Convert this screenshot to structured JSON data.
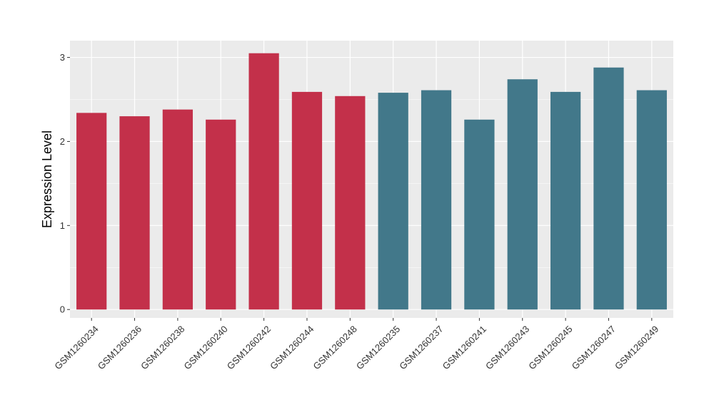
{
  "chart_data": {
    "type": "bar",
    "title": "",
    "xlabel": "",
    "ylabel": "Expression Level",
    "ylim": [
      -0.1,
      3.2
    ],
    "yticks": [
      0,
      1,
      2,
      3
    ],
    "grid": true,
    "legend": "none",
    "categories": [
      "GSM1260234",
      "GSM1260236",
      "GSM1260238",
      "GSM1260240",
      "GSM1260242",
      "GSM1260244",
      "GSM1260248",
      "GSM1260235",
      "GSM1260237",
      "GSM1260241",
      "GSM1260243",
      "GSM1260245",
      "GSM1260247",
      "GSM1260249"
    ],
    "values": [
      2.34,
      2.3,
      2.38,
      2.26,
      3.05,
      2.59,
      2.54,
      2.58,
      2.61,
      2.26,
      2.74,
      2.59,
      2.88,
      2.61
    ],
    "bar_colors": [
      "#C3304A",
      "#C3304A",
      "#C3304A",
      "#C3304A",
      "#C3304A",
      "#C3304A",
      "#C3304A",
      "#42788A",
      "#42788A",
      "#42788A",
      "#42788A",
      "#42788A",
      "#42788A",
      "#42788A"
    ],
    "panel_background": "#EBEBEB",
    "grid_color": "#FFFFFF"
  }
}
